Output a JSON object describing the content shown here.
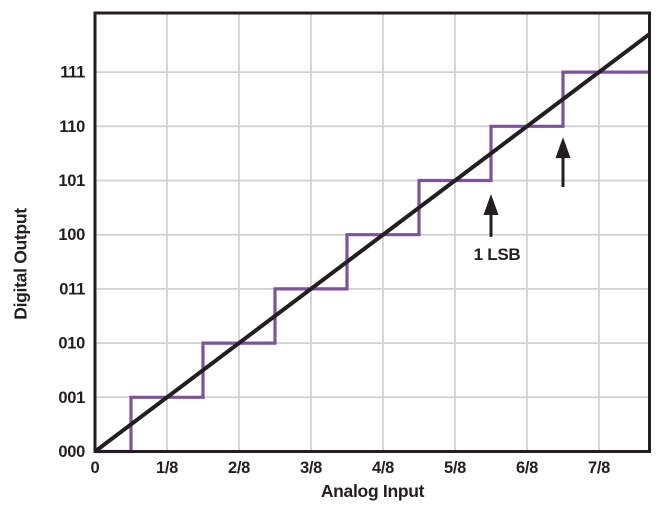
{
  "chart_data": {
    "type": "line",
    "title": "",
    "xlabel": "Analog Input",
    "ylabel": "Digital Output",
    "x_tick_labels": [
      "0",
      "1/8",
      "2/8",
      "3/8",
      "4/8",
      "5/8",
      "6/8",
      "7/8"
    ],
    "x_tick_values_eighths": [
      0,
      1,
      2,
      3,
      4,
      5,
      6,
      7
    ],
    "x_range_eighths": [
      0,
      7.7
    ],
    "y_tick_labels": [
      "000",
      "001",
      "010",
      "011",
      "100",
      "101",
      "110",
      "111"
    ],
    "y_tick_values_codes": [
      0,
      1,
      2,
      3,
      4,
      5,
      6,
      7
    ],
    "y_range_codes": [
      0,
      8.09
    ],
    "grid": true,
    "legend": "none",
    "series": [
      {
        "name": "ideal-transfer-line",
        "type": "line",
        "color": "#231f20",
        "points_eighths_codes": [
          [
            0,
            0
          ],
          [
            7.7,
            7.7
          ]
        ]
      },
      {
        "name": "quantization-staircase",
        "type": "step",
        "color": "#7c52a1",
        "x_start_eighths": 0,
        "x_end_eighths": 7.7,
        "transitions_eighths": [
          0.5,
          1.5,
          2.5,
          3.5,
          4.5,
          5.5,
          6.5
        ],
        "levels_codes": [
          0,
          1,
          2,
          3,
          4,
          5,
          6,
          7
        ]
      }
    ],
    "annotation": {
      "label": "1 LSB",
      "arrows": [
        {
          "x_eighths": 5.5,
          "tip_code": 4.75,
          "tail_code": 3.96,
          "label_below": true
        },
        {
          "x_eighths": 6.5,
          "tip_code": 5.8,
          "tail_code": 4.88,
          "label_below": false
        }
      ]
    },
    "colors": {
      "background": "#ffffff",
      "staircase": "#7c52a1",
      "ideal_line": "#231f20",
      "grid": "#d2d2d2",
      "axis": "#231f20",
      "text": "#231f20"
    }
  }
}
